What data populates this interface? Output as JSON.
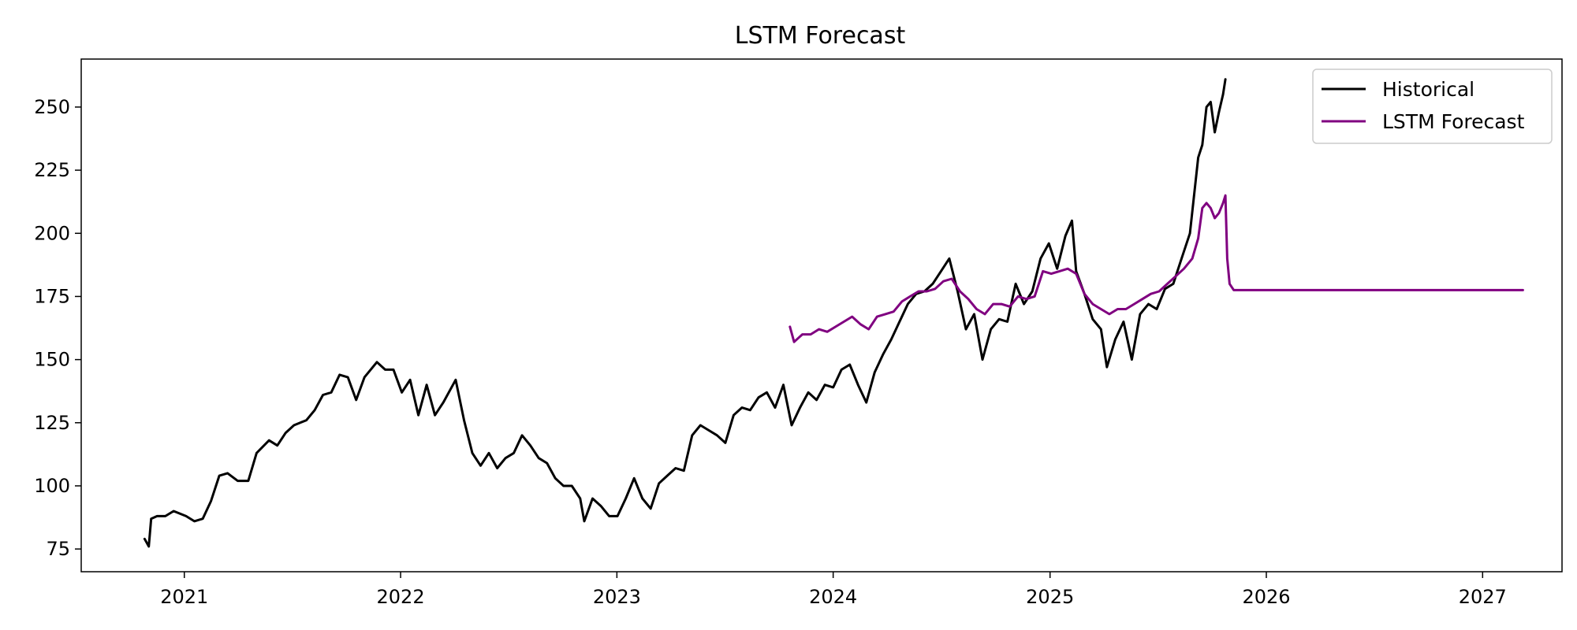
{
  "chart_data": {
    "type": "line",
    "title": "LSTM Forecast",
    "xlabel": "",
    "ylabel": "",
    "x_range": [
      "2020-07-11",
      "2027-05-15"
    ],
    "ylim": [
      66,
      269
    ],
    "x_ticks": [
      {
        "label": "2021",
        "date": "2021-01-01"
      },
      {
        "label": "2022",
        "date": "2022-01-01"
      },
      {
        "label": "2023",
        "date": "2023-01-01"
      },
      {
        "label": "2024",
        "date": "2024-01-01"
      },
      {
        "label": "2025",
        "date": "2025-01-01"
      },
      {
        "label": "2026",
        "date": "2026-01-01"
      },
      {
        "label": "2027",
        "date": "2027-01-01"
      }
    ],
    "y_ticks": [
      75,
      100,
      125,
      150,
      175,
      200,
      225,
      250
    ],
    "grid": false,
    "legend": "top-right",
    "series": [
      {
        "name": "Historical",
        "color": "#000000",
        "points": [
          [
            "2020-10-26",
            79
          ],
          [
            "2020-11-02",
            76
          ],
          [
            "2020-11-06",
            87
          ],
          [
            "2020-11-16",
            88
          ],
          [
            "2020-11-30",
            88
          ],
          [
            "2020-12-14",
            90
          ],
          [
            "2021-01-04",
            88
          ],
          [
            "2021-01-18",
            86
          ],
          [
            "2021-02-01",
            87
          ],
          [
            "2021-02-15",
            94
          ],
          [
            "2021-03-01",
            104
          ],
          [
            "2021-03-15",
            105
          ],
          [
            "2021-04-01",
            102
          ],
          [
            "2021-04-19",
            102
          ],
          [
            "2021-05-03",
            113
          ],
          [
            "2021-05-24",
            118
          ],
          [
            "2021-06-07",
            116
          ],
          [
            "2021-06-21",
            121
          ],
          [
            "2021-07-05",
            124
          ],
          [
            "2021-07-26",
            126
          ],
          [
            "2021-08-09",
            130
          ],
          [
            "2021-08-23",
            136
          ],
          [
            "2021-09-06",
            137
          ],
          [
            "2021-09-20",
            144
          ],
          [
            "2021-10-04",
            143
          ],
          [
            "2021-10-18",
            134
          ],
          [
            "2021-11-01",
            143
          ],
          [
            "2021-11-22",
            149
          ],
          [
            "2021-12-06",
            146
          ],
          [
            "2021-12-20",
            146
          ],
          [
            "2022-01-03",
            137
          ],
          [
            "2022-01-17",
            142
          ],
          [
            "2022-01-31",
            128
          ],
          [
            "2022-02-14",
            140
          ],
          [
            "2022-02-28",
            128
          ],
          [
            "2022-03-14",
            133
          ],
          [
            "2022-04-04",
            142
          ],
          [
            "2022-04-18",
            126
          ],
          [
            "2022-05-02",
            113
          ],
          [
            "2022-05-16",
            108
          ],
          [
            "2022-05-30",
            113
          ],
          [
            "2022-06-13",
            107
          ],
          [
            "2022-06-27",
            111
          ],
          [
            "2022-07-11",
            113
          ],
          [
            "2022-07-25",
            120
          ],
          [
            "2022-08-08",
            116
          ],
          [
            "2022-08-22",
            111
          ],
          [
            "2022-09-05",
            109
          ],
          [
            "2022-09-19",
            103
          ],
          [
            "2022-10-03",
            100
          ],
          [
            "2022-10-17",
            100
          ],
          [
            "2022-10-31",
            95
          ],
          [
            "2022-11-07",
            86
          ],
          [
            "2022-11-21",
            95
          ],
          [
            "2022-12-05",
            92
          ],
          [
            "2022-12-19",
            88
          ],
          [
            "2023-01-02",
            88
          ],
          [
            "2023-01-16",
            95
          ],
          [
            "2023-01-30",
            103
          ],
          [
            "2023-02-13",
            95
          ],
          [
            "2023-02-27",
            91
          ],
          [
            "2023-03-13",
            101
          ],
          [
            "2023-03-27",
            104
          ],
          [
            "2023-04-10",
            107
          ],
          [
            "2023-04-24",
            106
          ],
          [
            "2023-05-08",
            120
          ],
          [
            "2023-05-22",
            124
          ],
          [
            "2023-06-05",
            122
          ],
          [
            "2023-06-19",
            120
          ],
          [
            "2023-07-03",
            117
          ],
          [
            "2023-07-17",
            128
          ],
          [
            "2023-07-31",
            131
          ],
          [
            "2023-08-14",
            130
          ],
          [
            "2023-08-28",
            135
          ],
          [
            "2023-09-11",
            137
          ],
          [
            "2023-09-25",
            131
          ],
          [
            "2023-10-09",
            140
          ],
          [
            "2023-10-23",
            124
          ],
          [
            "2023-11-06",
            131
          ],
          [
            "2023-11-20",
            137
          ],
          [
            "2023-12-04",
            134
          ],
          [
            "2023-12-18",
            140
          ],
          [
            "2024-01-01",
            139
          ],
          [
            "2024-01-15",
            146
          ],
          [
            "2024-01-29",
            148
          ],
          [
            "2024-02-12",
            140
          ],
          [
            "2024-02-26",
            133
          ],
          [
            "2024-03-11",
            145
          ],
          [
            "2024-03-25",
            152
          ],
          [
            "2024-04-08",
            158
          ],
          [
            "2024-04-22",
            165
          ],
          [
            "2024-05-06",
            172
          ],
          [
            "2024-05-20",
            176
          ],
          [
            "2024-06-03",
            177
          ],
          [
            "2024-06-17",
            180
          ],
          [
            "2024-07-01",
            185
          ],
          [
            "2024-07-15",
            190
          ],
          [
            "2024-07-29",
            177
          ],
          [
            "2024-08-12",
            162
          ],
          [
            "2024-08-26",
            168
          ],
          [
            "2024-09-09",
            150
          ],
          [
            "2024-09-23",
            162
          ],
          [
            "2024-10-07",
            166
          ],
          [
            "2024-10-21",
            165
          ],
          [
            "2024-11-04",
            180
          ],
          [
            "2024-11-18",
            172
          ],
          [
            "2024-12-02",
            177
          ],
          [
            "2024-12-16",
            190
          ],
          [
            "2024-12-30",
            196
          ],
          [
            "2025-01-13",
            186
          ],
          [
            "2025-01-27",
            199
          ],
          [
            "2025-02-07",
            205
          ],
          [
            "2025-02-14",
            185
          ],
          [
            "2025-02-28",
            176
          ],
          [
            "2025-03-14",
            166
          ],
          [
            "2025-03-28",
            162
          ],
          [
            "2025-04-07",
            147
          ],
          [
            "2025-04-21",
            158
          ],
          [
            "2025-05-05",
            165
          ],
          [
            "2025-05-19",
            150
          ],
          [
            "2025-06-02",
            168
          ],
          [
            "2025-06-16",
            172
          ],
          [
            "2025-06-30",
            170
          ],
          [
            "2025-07-14",
            178
          ],
          [
            "2025-07-28",
            180
          ],
          [
            "2025-08-11",
            190
          ],
          [
            "2025-08-25",
            200
          ],
          [
            "2025-09-08",
            230
          ],
          [
            "2025-09-15",
            235
          ],
          [
            "2025-09-22",
            250
          ],
          [
            "2025-09-29",
            252
          ],
          [
            "2025-10-06",
            240
          ],
          [
            "2025-10-13",
            248
          ],
          [
            "2025-10-20",
            255
          ],
          [
            "2025-10-24",
            261
          ]
        ]
      },
      {
        "name": "LSTM Forecast",
        "color": "#800080",
        "points": [
          [
            "2023-10-20",
            163
          ],
          [
            "2023-10-27",
            157
          ],
          [
            "2023-11-10",
            160
          ],
          [
            "2023-11-24",
            160
          ],
          [
            "2023-12-08",
            162
          ],
          [
            "2023-12-22",
            161
          ],
          [
            "2024-01-05",
            163
          ],
          [
            "2024-01-19",
            165
          ],
          [
            "2024-02-02",
            167
          ],
          [
            "2024-02-16",
            164
          ],
          [
            "2024-03-01",
            162
          ],
          [
            "2024-03-15",
            167
          ],
          [
            "2024-03-29",
            168
          ],
          [
            "2024-04-12",
            169
          ],
          [
            "2024-04-26",
            173
          ],
          [
            "2024-05-10",
            175
          ],
          [
            "2024-05-24",
            177
          ],
          [
            "2024-06-07",
            177
          ],
          [
            "2024-06-21",
            178
          ],
          [
            "2024-07-05",
            181
          ],
          [
            "2024-07-19",
            182
          ],
          [
            "2024-08-02",
            177
          ],
          [
            "2024-08-16",
            174
          ],
          [
            "2024-08-30",
            170
          ],
          [
            "2024-09-13",
            168
          ],
          [
            "2024-09-27",
            172
          ],
          [
            "2024-10-11",
            172
          ],
          [
            "2024-10-25",
            171
          ],
          [
            "2024-11-08",
            175
          ],
          [
            "2024-11-22",
            174
          ],
          [
            "2024-12-06",
            175
          ],
          [
            "2024-12-20",
            185
          ],
          [
            "2025-01-03",
            184
          ],
          [
            "2025-01-17",
            185
          ],
          [
            "2025-01-31",
            186
          ],
          [
            "2025-02-14",
            184
          ],
          [
            "2025-02-28",
            176
          ],
          [
            "2025-03-14",
            172
          ],
          [
            "2025-03-28",
            170
          ],
          [
            "2025-04-11",
            168
          ],
          [
            "2025-04-25",
            170
          ],
          [
            "2025-05-09",
            170
          ],
          [
            "2025-05-23",
            172
          ],
          [
            "2025-06-06",
            174
          ],
          [
            "2025-06-20",
            176
          ],
          [
            "2025-07-04",
            177
          ],
          [
            "2025-07-18",
            180
          ],
          [
            "2025-08-01",
            183
          ],
          [
            "2025-08-15",
            186
          ],
          [
            "2025-08-29",
            190
          ],
          [
            "2025-09-08",
            198
          ],
          [
            "2025-09-15",
            210
          ],
          [
            "2025-09-22",
            212
          ],
          [
            "2025-09-29",
            210
          ],
          [
            "2025-10-06",
            206
          ],
          [
            "2025-10-13",
            208
          ],
          [
            "2025-10-20",
            212
          ],
          [
            "2025-10-24",
            215
          ],
          [
            "2025-10-27",
            190
          ],
          [
            "2025-10-31",
            180
          ],
          [
            "2025-11-07",
            177.5
          ],
          [
            "2026-01-01",
            177.5
          ],
          [
            "2026-06-01",
            177.5
          ],
          [
            "2027-01-01",
            177.5
          ],
          [
            "2027-03-10",
            177.5
          ]
        ]
      }
    ]
  }
}
